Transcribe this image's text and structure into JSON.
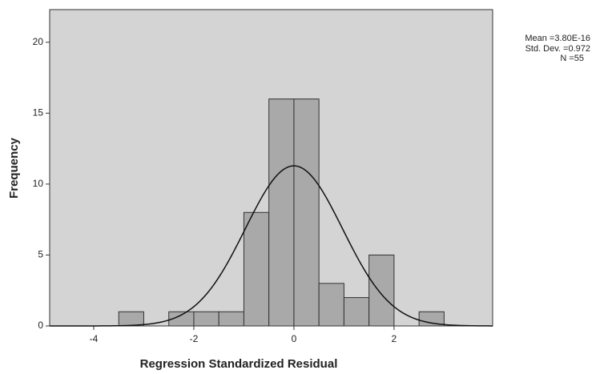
{
  "chart_data": {
    "type": "histogram",
    "x_label": "Regression Standardized Residual",
    "y_label": "Frequency",
    "bins": [
      -3.5,
      -3.0,
      -2.5,
      -2.0,
      -1.5,
      -1.0,
      -0.5,
      0.0,
      0.5,
      1.0,
      1.5,
      2.0,
      2.5,
      3.0
    ],
    "counts": [
      1,
      0,
      1,
      1,
      1,
      8,
      16,
      16,
      3,
      2,
      5,
      0,
      1
    ],
    "color": "#a9a9a9",
    "xlim": [
      -4.88,
      3.97
    ],
    "xticks": [
      -4,
      -2,
      0,
      2
    ],
    "ylim": [
      0,
      22.3
    ],
    "yticks": [
      0,
      5,
      10,
      15,
      20
    ],
    "normal_curve": {
      "mean": {
        "value": 3.8e-16,
        "label": "Mean =3.80E-16"
      },
      "sd": {
        "value": 0.972,
        "label": "Std. Dev. =0.972"
      },
      "n": {
        "value": 55,
        "label": "N =55"
      }
    }
  }
}
